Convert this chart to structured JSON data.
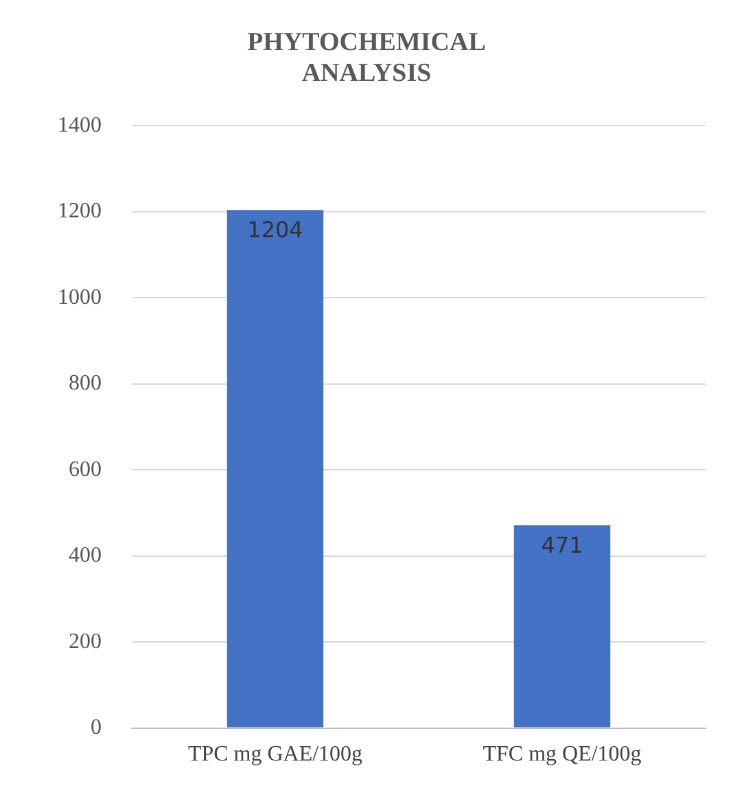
{
  "chart_data": {
    "type": "bar",
    "title": "PHYTOCHEMICAL ANALYSIS",
    "categories": [
      "TPC mg GAE/100g",
      "TFC mg QE/100g"
    ],
    "values": [
      1204,
      471
    ],
    "color": "#4472c4",
    "ylim": [
      0,
      1400
    ],
    "yticks": [
      0,
      200,
      400,
      600,
      800,
      1000,
      1200,
      1400
    ],
    "grid": "y",
    "data_labels": true,
    "legend": false
  }
}
